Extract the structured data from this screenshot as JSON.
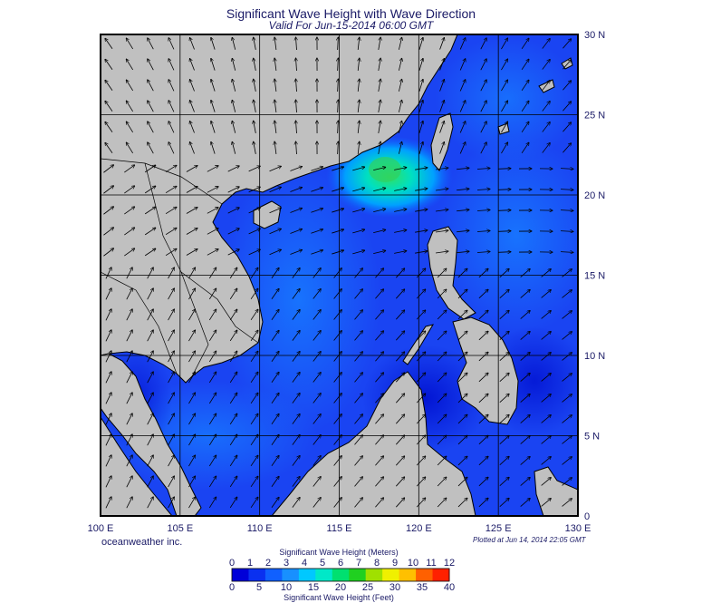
{
  "title": "Significant Wave Height with Wave Direction",
  "subtitle": "Valid For Jun-15-2014 06:00 GMT",
  "credit": "oceanweather inc.",
  "plotted": "Plotted at Jun 14, 2014 22:05 GMT",
  "map": {
    "lon_range": [
      100,
      130
    ],
    "lat_range": [
      0,
      30
    ],
    "lon_labels": [
      "100 E",
      "105 E",
      "110 E",
      "115 E",
      "120 E",
      "125 E",
      "130 E"
    ],
    "lat_labels": [
      "30 N",
      "25 N",
      "20 N",
      "15 N",
      "10 N",
      "5 N",
      "0"
    ],
    "grid": true,
    "land_color": "#c0c0c0",
    "ocean_base_color": "#1a3af0"
  },
  "colorbar": {
    "title_top": "Significant Wave Height (Meters)",
    "title_bottom": "Significant Wave Height (Feet)",
    "meters_ticks": [
      "0",
      "1",
      "2",
      "3",
      "4",
      "5",
      "6",
      "7",
      "8",
      "9",
      "10",
      "11",
      "12"
    ],
    "feet_ticks": [
      "0",
      "5",
      "10",
      "15",
      "20",
      "25",
      "30",
      "35",
      "40"
    ],
    "colors": [
      "#0000d8",
      "#0a30f0",
      "#1060ff",
      "#1890ff",
      "#00c8ff",
      "#00e8c8",
      "#00e070",
      "#20d020",
      "#a0e000",
      "#f0f000",
      "#ffc000",
      "#ff6000",
      "#ff2000"
    ]
  }
}
